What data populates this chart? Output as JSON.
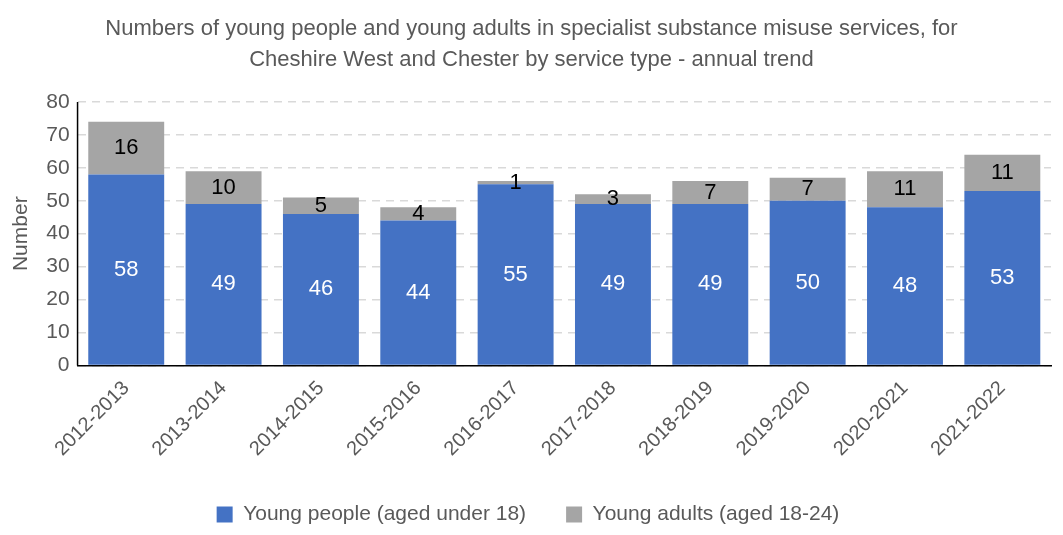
{
  "chart_data": {
    "type": "bar",
    "title": "Numbers of young people and young adults in specialist substance misuse services, for Cheshire West and Chester by service type - annual trend",
    "ylabel": "Number",
    "categories": [
      "2012-2013",
      "2013-2014",
      "2014-2015",
      "2015-2016",
      "2016-2017",
      "2017-2018",
      "2018-2019",
      "2019-2020",
      "2020-2021",
      "2021-2022"
    ],
    "series": [
      {
        "name": "Young people (aged under 18)",
        "color": "#4472c4",
        "values": [
          58,
          49,
          46,
          44,
          55,
          49,
          49,
          50,
          48,
          53
        ]
      },
      {
        "name": "Young adults (aged 18-24)",
        "color": "#a5a5a5",
        "values": [
          16,
          10,
          5,
          4,
          1,
          3,
          7,
          7,
          11,
          11
        ]
      }
    ],
    "stacked": true,
    "ylim": [
      0,
      80
    ],
    "yticks": [
      0,
      10,
      20,
      30,
      40,
      50,
      60,
      70,
      80
    ],
    "grid": "y",
    "data_labels": true,
    "legend": "bottom"
  }
}
